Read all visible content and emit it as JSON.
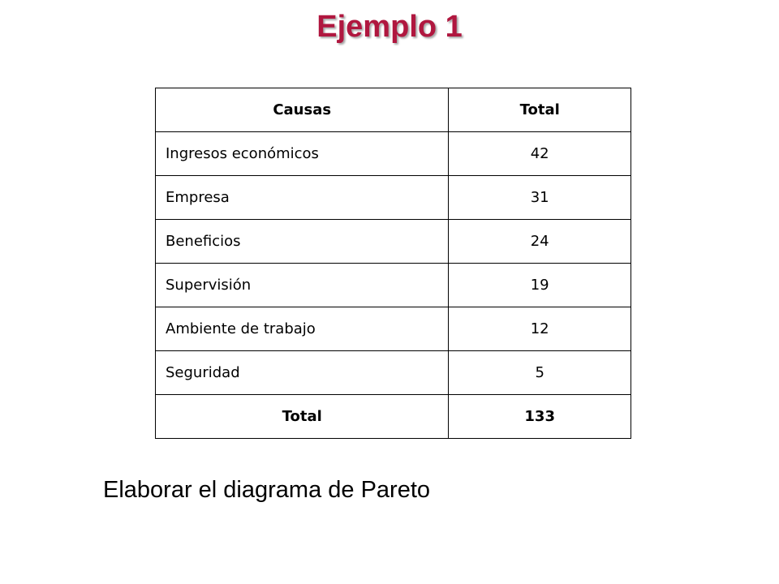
{
  "title": "Ejemplo 1",
  "colors": {
    "title": "#b0173f",
    "table_border": "#000000",
    "background": "#ffffff"
  },
  "table": {
    "headers": [
      "Causas",
      "Total"
    ],
    "rows": [
      {
        "cause": "Ingresos económicos",
        "total": "42"
      },
      {
        "cause": "Empresa",
        "total": "31"
      },
      {
        "cause": "Beneficios",
        "total": "24"
      },
      {
        "cause": "Supervisión",
        "total": "19"
      },
      {
        "cause": "Ambiente de trabajo",
        "total": "12"
      },
      {
        "cause": "Seguridad",
        "total": "5"
      }
    ],
    "total_row": {
      "label": "Total",
      "value": "133"
    }
  },
  "instruction": "Elaborar el diagrama de Pareto"
}
